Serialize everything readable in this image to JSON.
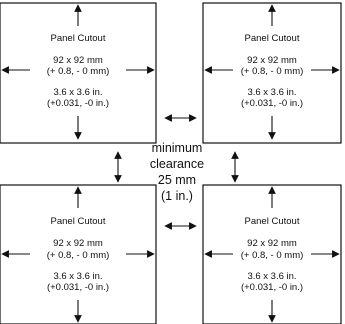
{
  "panels": [
    {
      "id": "top-left",
      "title": "Panel  Cutout",
      "size_mm": "92  x 92 mm",
      "tol_mm": "(+ 0.8, - 0 mm)",
      "size_in": "3.6 x 3.6 in.",
      "tol_in": "(+0.031, -0 in.)"
    },
    {
      "id": "top-right",
      "title": "Panel  Cutout",
      "size_mm": "92  x 92 mm",
      "tol_mm": "(+ 0.8, - 0 mm)",
      "size_in": "3.6 x 3.6 in.",
      "tol_in": "(+0.031, -0 in.)"
    },
    {
      "id": "bottom-left",
      "title": "Panel  Cutout",
      "size_mm": "92  x 92 mm",
      "tol_mm": "(+ 0.8, - 0 mm)",
      "size_in": "3.6 x 3.6 in.",
      "tol_in": "(+0.031, -0 in.)"
    },
    {
      "id": "bottom-right",
      "title": "Panel  Cutout",
      "size_mm": "92  x 92 mm",
      "tol_mm": "(+ 0.8, - 0 mm)",
      "size_in": "3.6 x 3.6 in.",
      "tol_in": "(+0.031, -0 in.)"
    }
  ],
  "clearance": {
    "line1": "minimum",
    "line2": "clearance",
    "line3": "25 mm",
    "line4": "(1 in.)"
  }
}
